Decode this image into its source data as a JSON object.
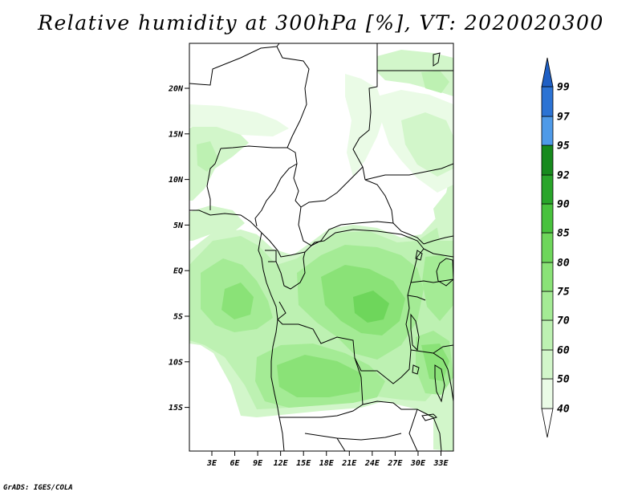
{
  "title": "Relative humidity at 300hPa [%], VT: 2020020300",
  "credit": "GrADS: IGES/COLA",
  "lat_labels": [
    "20N",
    "15N",
    "10N",
    "5N",
    "EQ",
    "5S",
    "10S",
    "15S"
  ],
  "lon_labels": [
    "3E",
    "6E",
    "9E",
    "12E",
    "15E",
    "18E",
    "21E",
    "24E",
    "27E",
    "30E",
    "33E"
  ],
  "colorbar": {
    "labels": [
      "40",
      "50",
      "60",
      "70",
      "75",
      "80",
      "85",
      "90",
      "92",
      "95",
      "97",
      "99"
    ],
    "colors": [
      "#ffffff",
      "#eafbe6",
      "#d2f6ca",
      "#bdf1b2",
      "#a4eb95",
      "#8ae277",
      "#6ed65b",
      "#48c23d",
      "#29a52a",
      "#178a1d",
      "#4f9ae8",
      "#2c73d4",
      "#1f5fc4"
    ]
  }
}
